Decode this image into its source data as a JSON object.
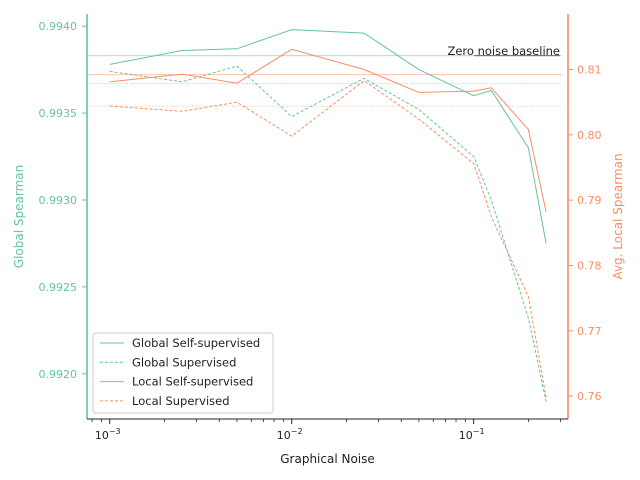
{
  "chart_data": {
    "type": "line",
    "xscale": "log",
    "xlim": [
      0.00075,
      0.33
    ],
    "xlabel": "Graphical Noise",
    "x_ticks": [
      {
        "value": 0.001,
        "base": "10",
        "exp": "−3"
      },
      {
        "value": 0.01,
        "base": "10",
        "exp": "−2"
      },
      {
        "value": 0.1,
        "base": "10",
        "exp": "−1"
      }
    ],
    "ylabel_left": "Global Spearman",
    "ylim_left": [
      0.99174,
      0.99407
    ],
    "yticks_left": [
      0.992,
      0.9925,
      0.993,
      0.9935,
      0.994
    ],
    "yticks_left_labels": [
      "0.9920",
      "0.9925",
      "0.9930",
      "0.9935",
      "0.9940"
    ],
    "ylabel_right": "Avg. Local Spearman",
    "ylim_right": [
      0.7565,
      0.8185
    ],
    "yticks_right": [
      0.76,
      0.77,
      0.78,
      0.79,
      0.8,
      0.81
    ],
    "yticks_right_labels": [
      "0.76",
      "0.77",
      "0.78",
      "0.79",
      "0.80",
      "0.81"
    ],
    "colors": {
      "global": "#66c2a5",
      "local": "#fc8d62"
    },
    "x": [
      0.001,
      0.0025,
      0.005,
      0.01,
      0.025,
      0.05,
      0.1,
      0.125,
      0.2,
      0.25
    ],
    "series": [
      {
        "name": "Global Self-supervised",
        "axis": "left",
        "color": "#66c2a5",
        "dashed": false,
        "values": [
          0.99378,
          0.99386,
          0.99387,
          0.99398,
          0.99396,
          0.99375,
          0.9936,
          0.99363,
          0.9933,
          0.99275
        ]
      },
      {
        "name": "Global Supervised",
        "axis": "left",
        "color": "#66c2a5",
        "dashed": true,
        "values": [
          0.99374,
          0.99368,
          0.99377,
          0.99348,
          0.9937,
          0.99352,
          0.99325,
          0.993,
          0.99232,
          0.99184
        ]
      },
      {
        "name": "Local Self-supervised",
        "axis": "right",
        "color": "#fc8d62",
        "dashed": false,
        "values": [
          0.8081,
          0.8093,
          0.8079,
          0.8131,
          0.81,
          0.8065,
          0.8067,
          0.8072,
          0.8008,
          0.7882
        ]
      },
      {
        "name": "Local Supervised",
        "axis": "right",
        "color": "#fc8d62",
        "dashed": true,
        "values": [
          0.8044,
          0.8036,
          0.805,
          0.7998,
          0.8083,
          0.8024,
          0.7956,
          0.7875,
          0.7752,
          0.7598
        ]
      }
    ],
    "baseline_label": "Zero noise baseline",
    "baselines": [
      {
        "axis": "left",
        "value": 0.99383,
        "color": "#66c2a5",
        "dashed": false
      },
      {
        "axis": "left",
        "value": 0.99367,
        "color": "#66c2a5",
        "dashed": true
      },
      {
        "axis": "right",
        "value": 0.8092,
        "color": "#fc8d62",
        "dashed": false
      },
      {
        "axis": "right",
        "value": 0.8044,
        "color": "#fc8d62",
        "dashed": true
      }
    ],
    "legend_position": "lower-left"
  }
}
